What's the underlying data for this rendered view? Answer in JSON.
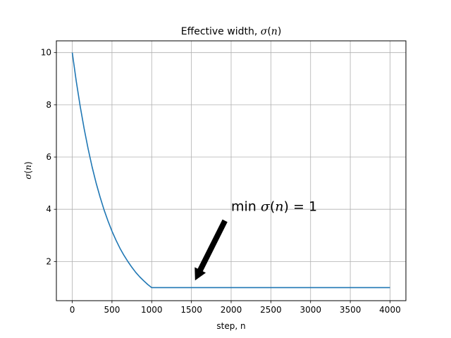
{
  "chart_data": {
    "type": "line",
    "title_text": "Effective width, ",
    "title_symbol": "σ",
    "title_arg": "n",
    "xlabel": "step, n",
    "ylabel_symbol": "σ",
    "ylabel_arg": "n",
    "xlim": [
      -200,
      4200
    ],
    "ylim": [
      0.5,
      10.45
    ],
    "x_ticks": [
      0,
      500,
      1000,
      1500,
      2000,
      2500,
      3000,
      3500,
      4000
    ],
    "y_ticks": [
      2,
      4,
      6,
      8,
      10
    ],
    "grid": true,
    "line_color": "#1f77b4",
    "series": [
      {
        "x": [
          0,
          50,
          100,
          150,
          200,
          250,
          300,
          350,
          400,
          450,
          500,
          550,
          600,
          650,
          700,
          750,
          800,
          850,
          900,
          950,
          1000,
          1500,
          2000,
          2500,
          3000,
          3500,
          4000
        ],
        "y": [
          10.0,
          8.91,
          7.94,
          7.08,
          6.31,
          5.62,
          5.01,
          4.47,
          3.98,
          3.55,
          3.16,
          2.82,
          2.51,
          2.24,
          2.0,
          1.78,
          1.58,
          1.41,
          1.26,
          1.12,
          1.0,
          1.0,
          1.0,
          1.0,
          1.0,
          1.0,
          1.0
        ]
      }
    ],
    "annotation": {
      "prefix": "min ",
      "symbol": "σ",
      "arg": "n",
      "suffix": " = 1",
      "point": [
        1550,
        1.3
      ],
      "text_at": [
        2000,
        4.1
      ]
    }
  }
}
